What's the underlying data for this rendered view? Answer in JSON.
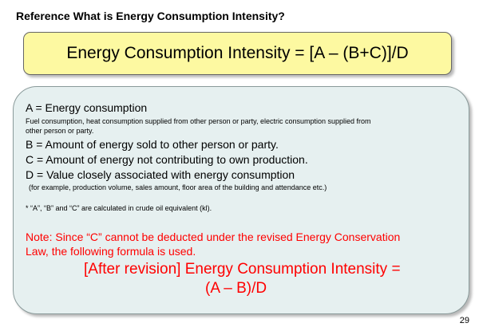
{
  "title": "Reference  What is Energy Consumption Intensity?",
  "formula": "Energy Consumption Intensity = [A – (B+C)]/D",
  "definitions": {
    "a": "A = Energy consumption",
    "a_detail_1": "Fuel consumption, heat consumption supplied from other person or party, electric consumption supplied from",
    "a_detail_2": "other person or party.",
    "b": "B = Amount of energy sold to other person or party.",
    "c": "C = Amount of energy not contributing to own production.",
    "d": "D = Value closely associated with energy consumption",
    "d_detail": "(for example, production volume, sales amount, floor area of the building and attendance etc.)",
    "footnote": "* “A”, “B” and “C” are calculated in crude oil equivalent (kl)."
  },
  "note": {
    "line1": "Note: Since “C” cannot be deducted under the revised Energy Conservation",
    "line2": "Law, the following formula is used."
  },
  "revised_formula": {
    "line1": "[After revision] Energy Consumption Intensity =",
    "line2": "(A – B)/D"
  },
  "page_number": "29",
  "colors": {
    "formula_box_fill": "#fdf9a1",
    "content_box_fill": "#e6f0f0",
    "note_text": "#ff0000"
  }
}
